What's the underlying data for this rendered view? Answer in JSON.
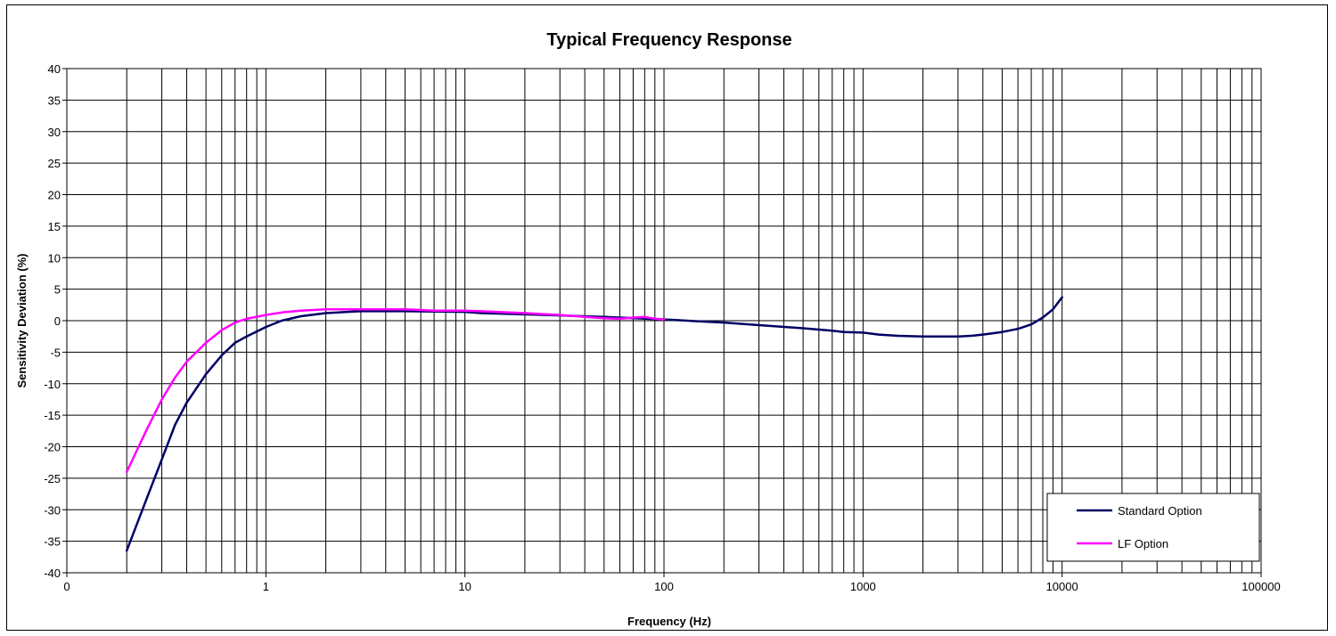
{
  "chart_data": {
    "type": "line",
    "title": "Typical Frequency Response",
    "xlabel": "Frequency (Hz)",
    "ylabel": "Sensitivity Deviation (%)",
    "x_scale": "log",
    "xlim": [
      0.1,
      100000
    ],
    "ylim": [
      -40,
      40
    ],
    "x_tick_labels": [
      "0",
      "1",
      "10",
      "100",
      "1000",
      "10000",
      "100000"
    ],
    "y_ticks": [
      40,
      35,
      30,
      25,
      20,
      15,
      10,
      5,
      0,
      -5,
      -10,
      -15,
      -20,
      -25,
      -30,
      -35,
      -40
    ],
    "grid": true,
    "legend_position": "bottom-right",
    "series": [
      {
        "name": "Standard Option",
        "color": "#000066",
        "x": [
          0.2,
          0.25,
          0.3,
          0.35,
          0.4,
          0.5,
          0.6,
          0.7,
          0.8,
          1,
          1.2,
          1.5,
          2,
          3,
          5,
          10,
          12,
          20,
          50,
          100,
          150,
          200,
          300,
          500,
          700,
          800,
          1000,
          1200,
          1500,
          2000,
          3000,
          3500,
          4000,
          5000,
          6000,
          7000,
          8000,
          9000,
          10000
        ],
        "y": [
          -36.5,
          -28.5,
          -22,
          -16.5,
          -13,
          -8.5,
          -5.5,
          -3.5,
          -2.5,
          -1,
          0,
          0.7,
          1.2,
          1.5,
          1.5,
          1.4,
          1.2,
          1,
          0.6,
          0.2,
          -0.1,
          -0.3,
          -0.7,
          -1.2,
          -1.6,
          -1.8,
          -1.9,
          -2.2,
          -2.4,
          -2.5,
          -2.5,
          -2.4,
          -2.2,
          -1.8,
          -1.3,
          -0.6,
          0.5,
          1.8,
          3.7
        ]
      },
      {
        "name": "LF Option",
        "color": "#ff00ff",
        "x": [
          0.2,
          0.25,
          0.3,
          0.35,
          0.4,
          0.5,
          0.6,
          0.7,
          0.8,
          1,
          1.2,
          1.5,
          2,
          3,
          5,
          6,
          7,
          10,
          12,
          20,
          30,
          40,
          50,
          60,
          70,
          80,
          90,
          100
        ],
        "y": [
          -24,
          -17.5,
          -12.5,
          -9,
          -6.5,
          -3.5,
          -1.5,
          -0.3,
          0.3,
          0.9,
          1.3,
          1.6,
          1.8,
          1.8,
          1.8,
          1.7,
          1.6,
          1.6,
          1.5,
          1.2,
          0.9,
          0.6,
          0.4,
          0.3,
          0.5,
          0.6,
          0.3,
          0.2
        ]
      }
    ]
  }
}
